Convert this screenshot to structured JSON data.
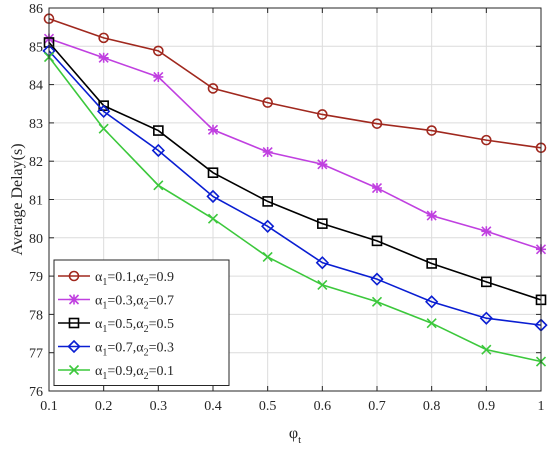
{
  "chart_data": {
    "type": "line",
    "xlabel": "φ",
    "xlabel_sub": "t",
    "ylabel": "Average Delay(s)",
    "x": [
      0.1,
      0.2,
      0.3,
      0.4,
      0.5,
      0.6,
      0.7,
      0.8,
      0.9,
      1.0
    ],
    "xticks": [
      "0.1",
      "0.2",
      "0.3",
      "0.4",
      "0.5",
      "0.6",
      "0.7",
      "0.8",
      "0.9",
      "1"
    ],
    "yticks": [
      "76",
      "77",
      "78",
      "79",
      "80",
      "81",
      "82",
      "83",
      "84",
      "85",
      "86"
    ],
    "xlim": [
      0.1,
      1.0
    ],
    "ylim": [
      76,
      86
    ],
    "grid": true,
    "legend_position": "bottom-left",
    "series": [
      {
        "name": "α1=0.1,α2=0.9",
        "a1": "0.1",
        "a2": "0.9",
        "color": "#A0281E",
        "marker": "circle",
        "values": [
          85.72,
          85.22,
          84.88,
          83.9,
          83.53,
          83.22,
          82.98,
          82.8,
          82.55,
          82.35
        ]
      },
      {
        "name": "α1=0.3,α2=0.7",
        "a1": "0.3",
        "a2": "0.7",
        "color": "#C040E0",
        "marker": "asterisk",
        "values": [
          85.2,
          84.7,
          84.2,
          82.82,
          82.24,
          81.92,
          81.3,
          80.58,
          80.17,
          79.7
        ]
      },
      {
        "name": "α1=0.5,α2=0.5",
        "a1": "0.5",
        "a2": "0.5",
        "color": "#000000",
        "marker": "square",
        "values": [
          85.1,
          83.45,
          82.8,
          81.7,
          80.95,
          80.37,
          79.92,
          79.33,
          78.85,
          78.38
        ]
      },
      {
        "name": "α1=0.7,α2=0.3",
        "a1": "0.7",
        "a2": "0.3",
        "color": "#0A1ED2",
        "marker": "diamond",
        "values": [
          84.88,
          83.3,
          82.28,
          81.08,
          80.3,
          79.35,
          78.92,
          78.33,
          77.9,
          77.72
        ]
      },
      {
        "name": "α1=0.9,α2=0.1",
        "a1": "0.9",
        "a2": "0.1",
        "color": "#3CC83C",
        "marker": "x",
        "values": [
          84.72,
          82.85,
          81.37,
          80.5,
          79.5,
          78.77,
          78.33,
          77.77,
          77.08,
          76.77
        ]
      }
    ]
  }
}
